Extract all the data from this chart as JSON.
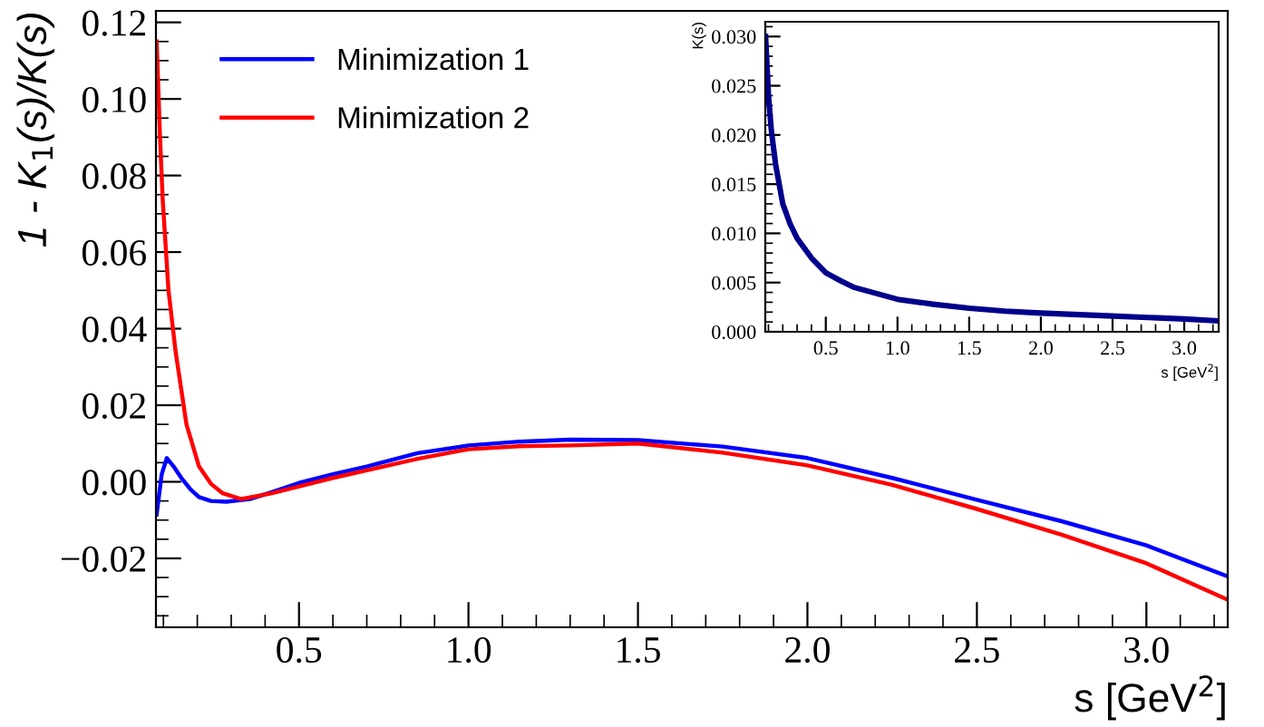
{
  "chart_data": [
    {
      "type": "line",
      "xlabel": "s [GeV$^{2}$]",
      "ylabel": "1 - K$_{1}$(s)/K(s)",
      "legend": "top left",
      "grid": false,
      "xlim": [
        0.078,
        3.24
      ],
      "ylim": [
        -0.038,
        0.123
      ],
      "xticks": [
        {
          "value": 0.5,
          "label": "0.5"
        },
        {
          "value": 1.0,
          "label": "1.0"
        },
        {
          "value": 1.5,
          "label": "1.5"
        },
        {
          "value": 2.0,
          "label": "2.0"
        },
        {
          "value": 2.5,
          "label": "2.5"
        },
        {
          "value": 3.0,
          "label": "3.0"
        }
      ],
      "yticks": [
        {
          "value": -0.02,
          "label": "−0.02"
        },
        {
          "value": 0.0,
          "label": "0.00"
        },
        {
          "value": 0.02,
          "label": "0.02"
        },
        {
          "value": 0.04,
          "label": "0.04"
        },
        {
          "value": 0.06,
          "label": "0.06"
        },
        {
          "value": 0.08,
          "label": "0.08"
        },
        {
          "value": 0.1,
          "label": "0.10"
        },
        {
          "value": 0.12,
          "label": "0.12"
        }
      ],
      "series": [
        {
          "name": "Minimization 1",
          "color": "#0000ff",
          "x": [
            0.08,
            0.095,
            0.11,
            0.13,
            0.153,
            0.18,
            0.205,
            0.24,
            0.285,
            0.355,
            0.42,
            0.5,
            0.6,
            0.7,
            0.85,
            1.0,
            1.15,
            1.3,
            1.5,
            1.75,
            2.0,
            2.25,
            2.5,
            2.75,
            3.0,
            3.24
          ],
          "values": [
            -0.0085,
            0.002,
            0.0062,
            0.004,
            0.001,
            -0.002,
            -0.004,
            -0.005,
            -0.0052,
            -0.0045,
            -0.0027,
            -0.0003,
            0.002,
            0.004,
            0.0075,
            0.0095,
            0.0105,
            0.011,
            0.0109,
            0.0092,
            0.0062,
            0.001,
            -0.0047,
            -0.0103,
            -0.0166,
            -0.0247
          ]
        },
        {
          "name": "Minimization 2",
          "color": "#ff0000",
          "x": [
            0.08,
            0.09,
            0.098,
            0.115,
            0.136,
            0.168,
            0.205,
            0.24,
            0.275,
            0.33,
            0.42,
            0.5,
            0.6,
            0.7,
            0.85,
            1.0,
            1.15,
            1.3,
            1.5,
            1.75,
            2.0,
            2.25,
            2.5,
            2.75,
            3.0,
            3.24
          ],
          "values": [
            0.115,
            0.09,
            0.0735,
            0.05,
            0.034,
            0.015,
            0.004,
            -0.0005,
            -0.003,
            -0.0045,
            -0.003,
            -0.0012,
            0.001,
            0.003,
            0.006,
            0.0085,
            0.0093,
            0.0095,
            0.01,
            0.0076,
            0.0043,
            -0.0008,
            -0.0071,
            -0.0138,
            -0.0213,
            -0.0308
          ]
        }
      ]
    },
    {
      "type": "line",
      "xlabel": "s [GeV$^{2}$]",
      "ylabel": "K(s)",
      "grid": false,
      "xlim": [
        0.078,
        3.24
      ],
      "ylim": [
        0.0,
        0.0315
      ],
      "xticks": [
        {
          "value": 0.5,
          "label": "0.5"
        },
        {
          "value": 1.0,
          "label": "1.0"
        },
        {
          "value": 1.5,
          "label": "1.5"
        },
        {
          "value": 2.0,
          "label": "2.0"
        },
        {
          "value": 2.5,
          "label": "2.5"
        },
        {
          "value": 3.0,
          "label": "3.0"
        }
      ],
      "yticks": [
        {
          "value": 0.0,
          "label": "0.000"
        },
        {
          "value": 0.005,
          "label": "0.005"
        },
        {
          "value": 0.01,
          "label": "0.010"
        },
        {
          "value": 0.015,
          "label": "0.015"
        },
        {
          "value": 0.02,
          "label": "0.020"
        },
        {
          "value": 0.025,
          "label": "0.025"
        },
        {
          "value": 0.03,
          "label": "0.030"
        }
      ],
      "series": [
        {
          "color": "#00008b",
          "x": [
            0.08,
            0.1,
            0.12,
            0.15,
            0.2,
            0.25,
            0.3,
            0.4,
            0.5,
            0.6,
            0.7,
            0.85,
            1.0,
            1.25,
            1.5,
            1.75,
            2.0,
            2.5,
            3.0,
            3.24
          ],
          "values": [
            0.03,
            0.024,
            0.0205,
            0.017,
            0.013,
            0.011,
            0.0095,
            0.0075,
            0.006,
            0.0052,
            0.0045,
            0.0039,
            0.0033,
            0.0028,
            0.0024,
            0.0021,
            0.0019,
            0.0016,
            0.0013,
            0.0011
          ]
        }
      ]
    }
  ]
}
